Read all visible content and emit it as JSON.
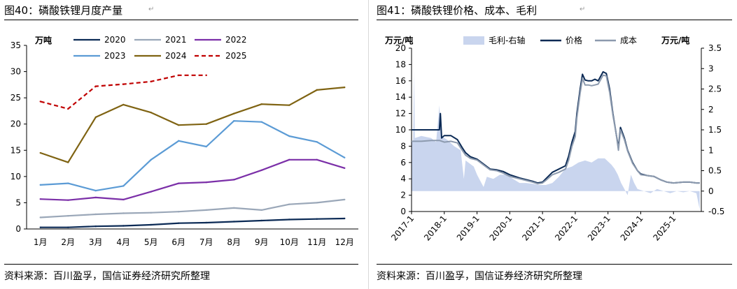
{
  "charts": [
    {
      "caption": "图40：磷酸铁锂月度产量",
      "source": "资料来源：百川盈孚，国信证券经济研究所整理",
      "para_mark": "↵",
      "chart_data": {
        "type": "line",
        "unit": "万吨",
        "categories": [
          "1月",
          "2月",
          "3月",
          "4月",
          "5月",
          "6月",
          "7月",
          "8月",
          "9月",
          "10月",
          "11月",
          "12月"
        ],
        "ylim": [
          0,
          35
        ],
        "yticks": [
          0,
          5,
          10,
          15,
          20,
          25,
          30,
          35
        ],
        "grid": false,
        "legend_position": "top",
        "series": [
          {
            "name": "2020",
            "color": "#0b2a55",
            "dash": false,
            "values": [
              0.3,
              0.3,
              0.5,
              0.6,
              0.8,
              1.1,
              1.2,
              1.4,
              1.6,
              1.8,
              1.9,
              2.0
            ]
          },
          {
            "name": "2021",
            "color": "#9aa7b8",
            "dash": false,
            "values": [
              2.2,
              2.5,
              2.8,
              3.0,
              3.1,
              3.3,
              3.6,
              4.0,
              3.6,
              4.7,
              5.0,
              5.6
            ]
          },
          {
            "name": "2022",
            "color": "#7b2fa8",
            "dash": false,
            "values": [
              5.7,
              5.5,
              6.0,
              5.6,
              7.1,
              8.7,
              8.9,
              9.4,
              11.2,
              13.2,
              13.2,
              11.6
            ]
          },
          {
            "name": "2023",
            "color": "#5b9bd5",
            "dash": false,
            "values": [
              8.4,
              8.7,
              7.3,
              8.2,
              13.2,
              16.8,
              15.7,
              20.6,
              20.4,
              17.7,
              16.6,
              13.6
            ]
          },
          {
            "name": "2024",
            "color": "#7f6312",
            "dash": false,
            "values": [
              14.5,
              12.7,
              21.3,
              23.7,
              22.2,
              19.8,
              20.0,
              22.0,
              23.8,
              23.6,
              26.5,
              27.0
            ]
          },
          {
            "name": "2025",
            "color": "#c00000",
            "dash": true,
            "values": [
              24.3,
              22.9,
              27.2,
              27.6,
              28.1,
              29.3,
              29.3,
              null,
              null,
              null,
              null,
              null
            ]
          }
        ]
      }
    },
    {
      "caption": "图41：磷酸铁锂价格、成本、毛利",
      "source": "资料来源：百川盈孚，国信证券经济研究所整理",
      "para_mark": "↵",
      "chart_data": {
        "type": "line",
        "left_unit": "万元/吨",
        "right_unit": "万元/吨",
        "ylim": [
          0,
          20
        ],
        "yticks": [
          0,
          2,
          4,
          6,
          8,
          10,
          12,
          14,
          16,
          18,
          20
        ],
        "y2lim": [
          -0.5,
          3.5
        ],
        "y2ticks": [
          "-0.5",
          "0",
          "0.5",
          "1",
          "1.5",
          "2",
          "2.5",
          "3",
          "3.5"
        ],
        "xlim": [
          2017.0,
          2025.85
        ],
        "xticks": [
          "2017-1",
          "2018-1",
          "2019-1",
          "2020-1",
          "2021-1",
          "2022-1",
          "2023-1",
          "2024-1",
          "2025-1"
        ],
        "grid": false,
        "legend_position": "top",
        "series": [
          {
            "name": "毛利-右轴",
            "kind": "area",
            "axis": "right",
            "color": "#c9d5ee",
            "points": [
              [
                2017.0,
                1.2
              ],
              [
                2017.05,
                1.25
              ],
              [
                2017.08,
                2.95
              ],
              [
                2017.1,
                1.3
              ],
              [
                2017.3,
                1.35
              ],
              [
                2017.6,
                1.3
              ],
              [
                2017.75,
                1.2
              ],
              [
                2017.85,
                2.1
              ],
              [
                2017.9,
                1.35
              ],
              [
                2018.0,
                1.3
              ],
              [
                2018.1,
                1.25
              ],
              [
                2018.3,
                1.1
              ],
              [
                2018.5,
                1.0
              ],
              [
                2018.6,
                0.3
              ],
              [
                2018.65,
                0.75
              ],
              [
                2018.9,
                0.6
              ],
              [
                2019.0,
                0.4
              ],
              [
                2019.1,
                0.25
              ],
              [
                2019.2,
                0.1
              ],
              [
                2019.3,
                0.35
              ],
              [
                2019.5,
                0.3
              ],
              [
                2019.7,
                0.4
              ],
              [
                2019.9,
                0.4
              ],
              [
                2020.1,
                0.3
              ],
              [
                2020.3,
                0.2
              ],
              [
                2020.5,
                0.2
              ],
              [
                2020.7,
                0.18
              ],
              [
                2020.9,
                0.15
              ],
              [
                2021.1,
                0.15
              ],
              [
                2021.3,
                0.2
              ],
              [
                2021.5,
                0.35
              ],
              [
                2021.7,
                0.55
              ],
              [
                2021.9,
                0.6
              ],
              [
                2022.1,
                0.7
              ],
              [
                2022.3,
                0.75
              ],
              [
                2022.5,
                0.7
              ],
              [
                2022.7,
                0.8
              ],
              [
                2022.9,
                0.8
              ],
              [
                2023.1,
                0.65
              ],
              [
                2023.2,
                0.55
              ],
              [
                2023.3,
                0.4
              ],
              [
                2023.4,
                0.2
              ],
              [
                2023.5,
                0.05
              ],
              [
                2023.6,
                -0.1
              ],
              [
                2023.7,
                0.4
              ],
              [
                2023.8,
                0.2
              ],
              [
                2023.9,
                0.05
              ],
              [
                2024.1,
                0.0
              ],
              [
                2024.3,
                -0.05
              ],
              [
                2024.5,
                0.05
              ],
              [
                2024.7,
                0.0
              ],
              [
                2024.9,
                -0.05
              ],
              [
                2025.1,
                0.0
              ],
              [
                2025.3,
                -0.03
              ],
              [
                2025.5,
                0.0
              ],
              [
                2025.7,
                -0.05
              ],
              [
                2025.8,
                -0.45
              ]
            ]
          },
          {
            "name": "价格",
            "kind": "line",
            "axis": "left",
            "color": "#0b2a55",
            "points": [
              [
                2017.0,
                10.0
              ],
              [
                2017.3,
                10.0
              ],
              [
                2017.6,
                10.0
              ],
              [
                2017.85,
                10.0
              ],
              [
                2017.88,
                12.0
              ],
              [
                2017.92,
                9.0
              ],
              [
                2018.0,
                9.3
              ],
              [
                2018.2,
                9.3
              ],
              [
                2018.4,
                8.8
              ],
              [
                2018.55,
                7.8
              ],
              [
                2018.65,
                7.2
              ],
              [
                2018.8,
                6.7
              ],
              [
                2019.0,
                6.4
              ],
              [
                2019.2,
                5.8
              ],
              [
                2019.4,
                5.2
              ],
              [
                2019.6,
                5.1
              ],
              [
                2019.8,
                4.9
              ],
              [
                2020.0,
                4.5
              ],
              [
                2020.3,
                4.1
              ],
              [
                2020.5,
                3.9
              ],
              [
                2020.7,
                3.7
              ],
              [
                2020.85,
                3.5
              ],
              [
                2021.0,
                3.6
              ],
              [
                2021.1,
                4.0
              ],
              [
                2021.3,
                4.8
              ],
              [
                2021.5,
                5.2
              ],
              [
                2021.7,
                5.6
              ],
              [
                2021.8,
                6.8
              ],
              [
                2021.9,
                8.5
              ],
              [
                2022.0,
                9.8
              ],
              [
                2022.05,
                12.0
              ],
              [
                2022.15,
                15.0
              ],
              [
                2022.22,
                16.8
              ],
              [
                2022.3,
                16.1
              ],
              [
                2022.4,
                16.0
              ],
              [
                2022.5,
                16.0
              ],
              [
                2022.6,
                16.2
              ],
              [
                2022.7,
                16.0
              ],
              [
                2022.85,
                17.1
              ],
              [
                2022.95,
                16.9
              ],
              [
                2023.05,
                15.0
              ],
              [
                2023.15,
                12.0
              ],
              [
                2023.25,
                9.5
              ],
              [
                2023.32,
                7.8
              ],
              [
                2023.38,
                10.3
              ],
              [
                2023.5,
                9.0
              ],
              [
                2023.6,
                7.5
              ],
              [
                2023.75,
                6.0
              ],
              [
                2023.9,
                5.0
              ],
              [
                2024.0,
                4.6
              ],
              [
                2024.2,
                4.4
              ],
              [
                2024.4,
                4.3
              ],
              [
                2024.6,
                3.9
              ],
              [
                2024.8,
                3.6
              ],
              [
                2025.0,
                3.5
              ],
              [
                2025.3,
                3.6
              ],
              [
                2025.5,
                3.6
              ],
              [
                2025.7,
                3.5
              ],
              [
                2025.8,
                3.5
              ]
            ]
          },
          {
            "name": "成本",
            "kind": "line",
            "axis": "left",
            "color": "#8c9aae",
            "points": [
              [
                2017.0,
                8.6
              ],
              [
                2017.3,
                8.6
              ],
              [
                2017.6,
                8.7
              ],
              [
                2017.85,
                8.7
              ],
              [
                2018.0,
                8.5
              ],
              [
                2018.2,
                8.6
              ],
              [
                2018.4,
                8.4
              ],
              [
                2018.55,
                7.5
              ],
              [
                2018.65,
                6.9
              ],
              [
                2018.8,
                6.5
              ],
              [
                2019.0,
                6.3
              ],
              [
                2019.2,
                5.7
              ],
              [
                2019.4,
                5.1
              ],
              [
                2019.6,
                5.0
              ],
              [
                2019.8,
                4.7
              ],
              [
                2020.0,
                4.3
              ],
              [
                2020.3,
                4.0
              ],
              [
                2020.5,
                3.8
              ],
              [
                2020.7,
                3.6
              ],
              [
                2020.85,
                3.4
              ],
              [
                2021.0,
                3.5
              ],
              [
                2021.1,
                3.8
              ],
              [
                2021.3,
                4.5
              ],
              [
                2021.5,
                4.8
              ],
              [
                2021.7,
                5.2
              ],
              [
                2021.8,
                6.3
              ],
              [
                2021.9,
                8.0
              ],
              [
                2022.0,
                9.2
              ],
              [
                2022.05,
                11.5
              ],
              [
                2022.15,
                14.5
              ],
              [
                2022.22,
                16.3
              ],
              [
                2022.3,
                15.5
              ],
              [
                2022.4,
                15.5
              ],
              [
                2022.5,
                15.4
              ],
              [
                2022.6,
                15.5
              ],
              [
                2022.7,
                15.6
              ],
              [
                2022.85,
                16.7
              ],
              [
                2022.95,
                16.6
              ],
              [
                2023.05,
                14.6
              ],
              [
                2023.15,
                11.8
              ],
              [
                2023.25,
                9.5
              ],
              [
                2023.32,
                7.5
              ],
              [
                2023.38,
                10.0
              ],
              [
                2023.5,
                8.8
              ],
              [
                2023.6,
                7.4
              ],
              [
                2023.75,
                5.9
              ],
              [
                2023.9,
                5.0
              ],
              [
                2024.0,
                4.5
              ],
              [
                2024.2,
                4.4
              ],
              [
                2024.4,
                4.3
              ],
              [
                2024.6,
                3.9
              ],
              [
                2024.8,
                3.6
              ],
              [
                2025.0,
                3.5
              ],
              [
                2025.3,
                3.6
              ],
              [
                2025.5,
                3.6
              ],
              [
                2025.7,
                3.5
              ],
              [
                2025.8,
                3.5
              ]
            ]
          }
        ]
      }
    }
  ]
}
